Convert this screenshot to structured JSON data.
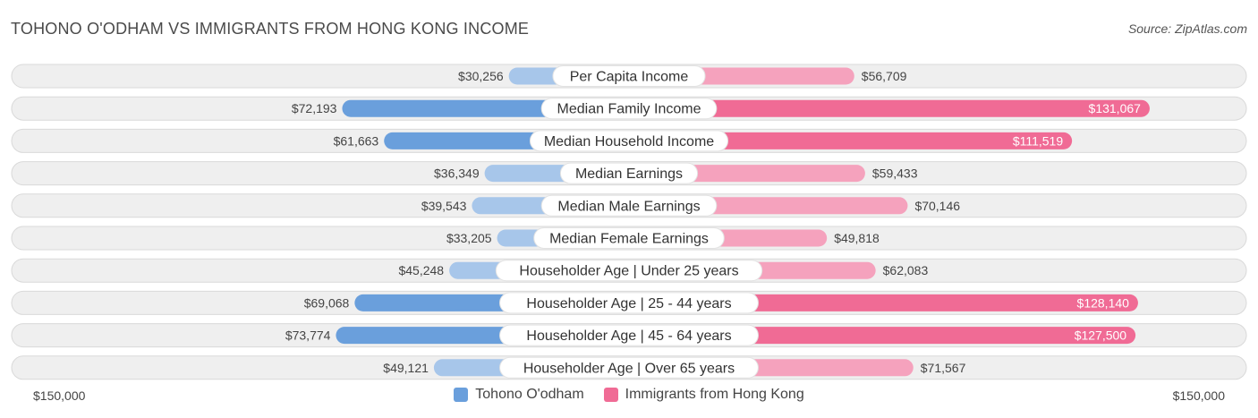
{
  "title": "TOHONO O'ODHAM VS IMMIGRANTS FROM HONG KONG INCOME",
  "source": "Source: ZipAtlas.com",
  "axis": {
    "left_label": "$150,000",
    "right_label": "$150,000"
  },
  "colors": {
    "left_strong": "#6a9fdc",
    "left_light": "#a7c6ea",
    "right_strong": "#f06b95",
    "right_light": "#f5a2bd",
    "row_bg": "#efefef",
    "row_border": "#d9d9d9"
  },
  "legend": [
    {
      "label": "Tohono O'odham",
      "color": "#6a9fdc"
    },
    {
      "label": "Immigrants from Hong Kong",
      "color": "#f06b95"
    }
  ],
  "chart_data": {
    "type": "bar",
    "orientation": "diverging-horizontal",
    "xlim": [
      -150000,
      150000
    ],
    "categories": [
      "Per Capita Income",
      "Median Family Income",
      "Median Household Income",
      "Median Earnings",
      "Median Male Earnings",
      "Median Female Earnings",
      "Householder Age | Under 25 years",
      "Householder Age | 25 - 44 years",
      "Householder Age | 45 - 64 years",
      "Householder Age | Over 65 years"
    ],
    "series": [
      {
        "name": "Tohono O'odham",
        "values": [
          30256,
          72193,
          61663,
          36349,
          39543,
          33205,
          45248,
          69068,
          73774,
          49121
        ],
        "labels": [
          "$30,256",
          "$72,193",
          "$61,663",
          "$36,349",
          "$39,543",
          "$33,205",
          "$45,248",
          "$69,068",
          "$73,774",
          "$49,121"
        ]
      },
      {
        "name": "Immigrants from Hong Kong",
        "values": [
          56709,
          131067,
          111519,
          59433,
          70146,
          49818,
          62083,
          128140,
          127500,
          71567
        ],
        "labels": [
          "$56,709",
          "$131,067",
          "$111,519",
          "$59,433",
          "$70,146",
          "$49,818",
          "$62,083",
          "$128,140",
          "$127,500",
          "$71,567"
        ]
      }
    ]
  }
}
